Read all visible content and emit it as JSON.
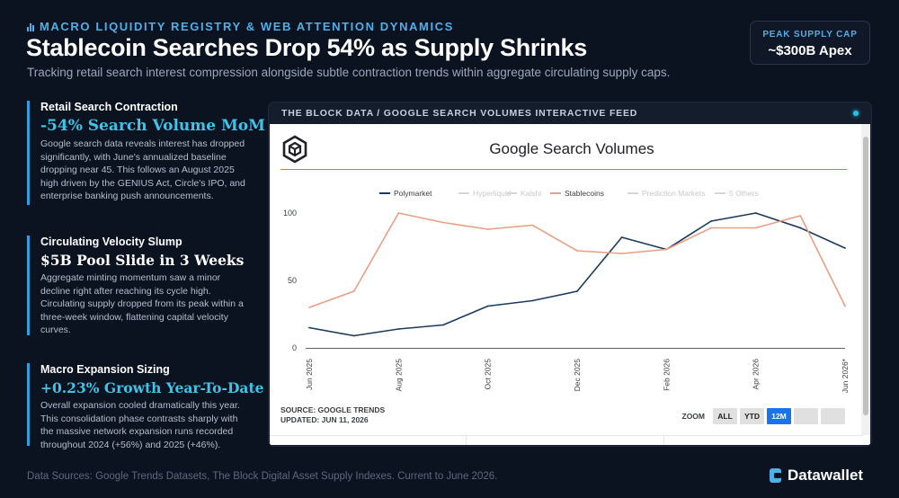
{
  "header": {
    "kicker": "MACRO LIQUIDITY REGISTRY & WEB ATTENTION DYNAMICS",
    "title": "Stablecoin Searches Drop 54% as Supply Shrinks",
    "subtitle": "Tracking retail search interest compression alongside subtle contraction trends within aggregate circulating supply caps."
  },
  "badge": {
    "label": "PEAK SUPPLY CAP",
    "value": "~$300B Apex"
  },
  "insights": [
    {
      "heading": "Retail Search Contraction",
      "stat": "-54% Search Volume MoM",
      "body": "Google search data reveals interest has dropped significantly, with June's annualized baseline dropping near 45. This follows an August 2025 high driven by the GENIUS Act, Circle's IPO, and enterprise banking push announcements."
    },
    {
      "heading": "Circulating Velocity Slump",
      "stat": "$5B Pool Slide in 3 Weeks",
      "body": "Aggregate minting momentum saw a minor decline right after reaching its cycle high. Circulating supply dropped from its peak within a three-week window, flattening capital velocity curves."
    },
    {
      "heading": "Macro Expansion Sizing",
      "stat": "+0.23% Growth Year-To-Date",
      "body": "Overall expansion cooled dramatically this year. This consolidation phase contrasts sharply with the massive network expansion runs recorded throughout 2024 (+56%) and 2025 (+46%)."
    }
  ],
  "panel": {
    "title": "THE BLOCK DATA / GOOGLE SEARCH VOLUMES INTERACTIVE FEED",
    "source_line1": "SOURCE: GOOGLE TRENDS",
    "source_line2": "UPDATED: JUN 11, 2026",
    "zoom_label": "ZOOM",
    "zoom_options": [
      "ALL",
      "YTD",
      "12M"
    ],
    "zoom_selected": "12M",
    "logo_icon": "cube-hexagon-icon"
  },
  "chart_data": {
    "type": "line",
    "title": "Google Search Volumes",
    "xlabel": "",
    "ylabel": "",
    "x": [
      "Jun 2025",
      "Jul 2025",
      "Aug 2025",
      "Sep 2025",
      "Oct 2025",
      "Nov 2025",
      "Dec 2025",
      "Jan 2026",
      "Feb 2026",
      "Mar 2026",
      "Apr 2026",
      "May 2026",
      "Jun 2026*"
    ],
    "x_tick_labels": [
      "Jun 2025",
      "Aug 2025",
      "Oct 2025",
      "Dec 2025",
      "Feb 2026",
      "Apr 2026",
      "Jun 2026*"
    ],
    "y_ticks": [
      0,
      50,
      100
    ],
    "ylim": [
      0,
      110
    ],
    "grid": false,
    "legend_position": "top",
    "legend": [
      {
        "name": "Polymarket",
        "color": "#1c3a5e",
        "active": true
      },
      {
        "name": "Hyperliquid",
        "color": "#d6d6d6",
        "active": false
      },
      {
        "name": "Kalshi",
        "color": "#d6d6d6",
        "active": false
      },
      {
        "name": "Stablecoins",
        "color": "#e8a084",
        "active": true
      },
      {
        "name": "Prediction Markets",
        "color": "#d6d6d6",
        "active": false
      },
      {
        "name": "5 Others",
        "color": "#d6d6d6",
        "active": false
      }
    ],
    "series": [
      {
        "name": "Polymarket",
        "color": "#1c3a5e",
        "values": [
          15,
          9,
          14,
          17,
          31,
          35,
          42,
          82,
          73,
          94,
          100,
          89,
          74
        ]
      },
      {
        "name": "Stablecoins",
        "color": "#e8a084",
        "values": [
          30,
          42,
          100,
          93,
          88,
          91,
          72,
          70,
          73,
          89,
          89,
          98,
          31
        ]
      }
    ]
  },
  "footer": {
    "sources": "Data Sources: Google Trends Datasets, The Block Digital Asset Supply Indexes. Current to June 2026.",
    "brand": "Datawallet",
    "brand_icon": "datawallet-logo-icon"
  }
}
